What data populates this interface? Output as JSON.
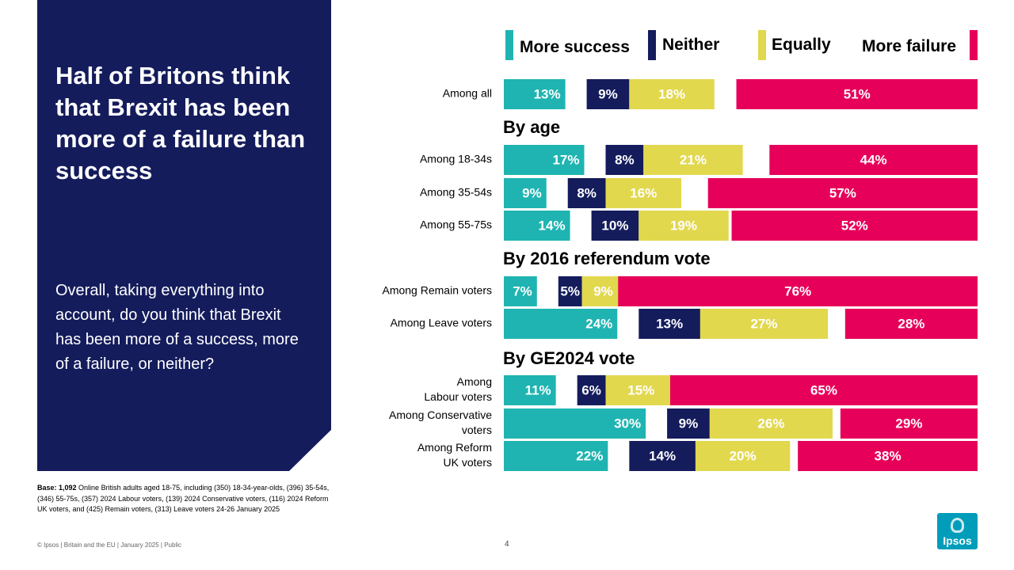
{
  "panel": {
    "title": "Half of Britons think that Brexit has been more of a failure than success",
    "question": "Overall, taking everything into account, do you think that Brexit has been more of a success, more of a failure, or neither?"
  },
  "base_note": {
    "label": "Base: 1,092",
    "text": " Online British adults aged 18-75, including (350) 18-34-year-olds, (396) 35-54s, (346) 55-75s, (357) 2024 Labour voters, (139) 2024 Conservative voters, (116) 2024 Reform UK voters, and (425) Remain voters, (313) Leave voters 24-26 January 2025"
  },
  "footer": {
    "text": "© Ipsos | Britain and the EU | January 2025 | Public",
    "page": "4"
  },
  "logo": {
    "text": "Ipsos"
  },
  "colors": {
    "panel": "#141c5c",
    "more_success": "#1fb4b1",
    "neither": "#141c5c",
    "equally": "#e2d84e",
    "more_failure": "#e6005a"
  },
  "chart_data": {
    "type": "bar",
    "legend": [
      "More success",
      "Neither",
      "Equally",
      "More failure"
    ],
    "series": [
      {
        "name": "More success",
        "color": "#1fb4b1"
      },
      {
        "name": "Neither",
        "color": "#141c5c"
      },
      {
        "name": "Equally",
        "color": "#e2d84e"
      },
      {
        "name": "More failure",
        "color": "#e6005a"
      }
    ],
    "groups": [
      {
        "header": "",
        "rows": [
          {
            "label": [
              "Among all"
            ],
            "values": [
              13,
              9,
              18,
              51
            ]
          }
        ]
      },
      {
        "header": "By age",
        "rows": [
          {
            "label": [
              "Among 18-34s"
            ],
            "values": [
              17,
              8,
              21,
              44
            ]
          },
          {
            "label": [
              "Among 35-54s"
            ],
            "values": [
              9,
              8,
              16,
              57
            ]
          },
          {
            "label": [
              "Among 55-75s"
            ],
            "values": [
              14,
              10,
              19,
              52
            ]
          }
        ]
      },
      {
        "header": "By 2016 referendum vote",
        "rows": [
          {
            "label": [
              "Among Remain voters"
            ],
            "values": [
              7,
              5,
              9,
              76
            ]
          },
          {
            "label": [
              "Among Leave voters"
            ],
            "values": [
              24,
              13,
              27,
              28
            ]
          }
        ]
      },
      {
        "header": "By GE2024 vote",
        "rows": [
          {
            "label": [
              "Among",
              "Labour voters"
            ],
            "values": [
              11,
              6,
              15,
              65
            ]
          },
          {
            "label": [
              "Among Conservative",
              "voters"
            ],
            "values": [
              30,
              9,
              26,
              29
            ]
          },
          {
            "label": [
              "Among Reform",
              "UK voters"
            ],
            "values": [
              22,
              14,
              20,
              38
            ]
          }
        ]
      }
    ],
    "value_suffix": "%"
  }
}
